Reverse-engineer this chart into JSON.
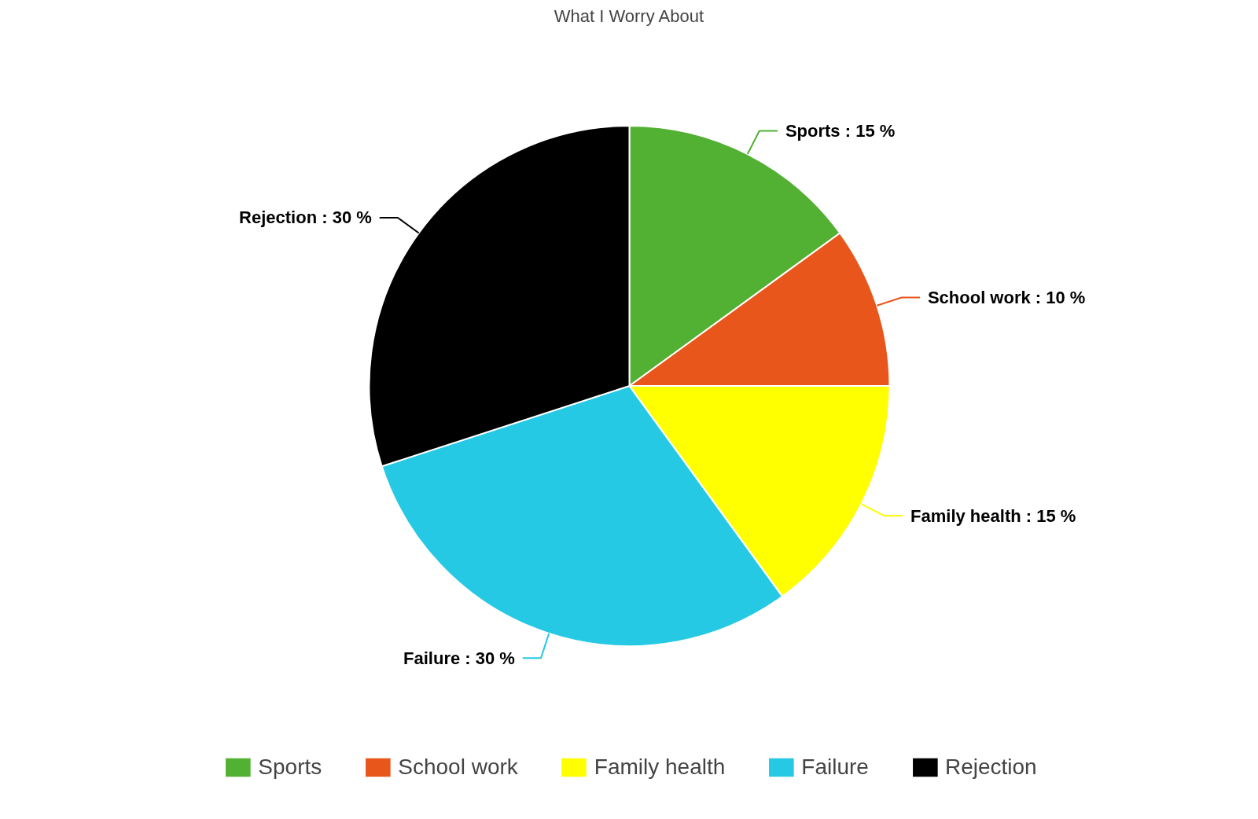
{
  "chart_data": {
    "type": "pie",
    "title": "What I Worry About",
    "categories": [
      "Sports",
      "School work",
      "Family health",
      "Failure",
      "Rejection"
    ],
    "values": [
      15,
      10,
      15,
      30,
      30
    ],
    "colors": [
      "#52b032",
      "#e8561c",
      "#ffff00",
      "#26c9e3",
      "#000000"
    ],
    "value_labels": [
      "Sports : 15 %",
      "School work : 10 %",
      "Family health : 15 %",
      "Failure : 30 %",
      "Rejection : 30 %"
    ],
    "legend": "bottom"
  }
}
